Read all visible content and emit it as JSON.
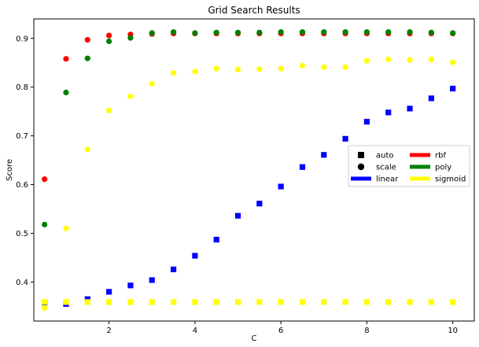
{
  "chart_data": {
    "type": "scatter",
    "title": "Grid Search Results",
    "xlabel": "C",
    "ylabel": "Score",
    "xlim": [
      0.25,
      10.5
    ],
    "ylim": [
      0.32,
      0.94
    ],
    "xticks": [
      2,
      4,
      6,
      8,
      10
    ],
    "yticks": [
      0.4,
      0.5,
      0.6,
      0.7,
      0.8,
      0.9
    ],
    "legend": {
      "position": "center-right",
      "entries": [
        {
          "label": "auto",
          "marker": "square",
          "color": "#000000"
        },
        {
          "label": "rbf",
          "marker": "line",
          "color": "#ff0000"
        },
        {
          "label": "scale",
          "marker": "circle",
          "color": "#000000"
        },
        {
          "label": "poly",
          "marker": "line",
          "color": "#008000"
        },
        {
          "label": "linear",
          "marker": "line",
          "color": "#0000ff"
        },
        {
          "label": "sigmoid",
          "marker": "line",
          "color": "#ffff00"
        }
      ]
    },
    "x": [
      0.5,
      1.0,
      1.5,
      2.0,
      2.5,
      3.0,
      3.5,
      4.0,
      4.5,
      5.0,
      5.5,
      6.0,
      6.5,
      7.0,
      7.5,
      8.0,
      8.5,
      9.0,
      9.5,
      10.0
    ],
    "series": [
      {
        "kernel": "rbf",
        "gamma": "scale",
        "marker": "circle",
        "color": "#ff0000",
        "values": [
          0.611,
          0.858,
          0.897,
          0.906,
          0.908,
          0.909,
          0.91,
          0.91,
          0.91,
          0.91,
          0.91,
          0.91,
          0.91,
          0.91,
          0.91,
          0.91,
          0.91,
          0.91,
          0.91,
          0.91
        ]
      },
      {
        "kernel": "poly",
        "gamma": "scale",
        "marker": "circle",
        "color": "#008000",
        "values": [
          0.518,
          0.789,
          0.859,
          0.894,
          0.901,
          0.911,
          0.913,
          0.911,
          0.912,
          0.912,
          0.912,
          0.913,
          0.913,
          0.913,
          0.913,
          0.913,
          0.913,
          0.913,
          0.912,
          0.911
        ]
      },
      {
        "kernel": "sigmoid",
        "gamma": "scale",
        "marker": "circle",
        "color": "#ffff00",
        "values": [
          0.347,
          0.51,
          0.672,
          0.752,
          0.781,
          0.807,
          0.829,
          0.832,
          0.838,
          0.836,
          0.837,
          0.838,
          0.844,
          0.841,
          0.841,
          0.854,
          0.857,
          0.856,
          0.857,
          0.851
        ]
      },
      {
        "kernel": "linear",
        "gamma": "auto",
        "marker": "square",
        "color": "#0000ff",
        "values": [
          0.358,
          0.355,
          0.365,
          0.38,
          0.393,
          0.404,
          0.426,
          0.454,
          0.487,
          0.536,
          0.561,
          0.596,
          0.636,
          0.661,
          0.694,
          0.729,
          0.748,
          0.756,
          0.777,
          0.797
        ]
      },
      {
        "kernel": "sigmoid",
        "gamma": "auto",
        "marker": "square",
        "color": "#ffff00",
        "values": [
          0.359,
          0.359,
          0.359,
          0.359,
          0.359,
          0.359,
          0.359,
          0.359,
          0.359,
          0.359,
          0.359,
          0.359,
          0.359,
          0.359,
          0.359,
          0.359,
          0.359,
          0.359,
          0.359,
          0.359
        ]
      }
    ]
  }
}
